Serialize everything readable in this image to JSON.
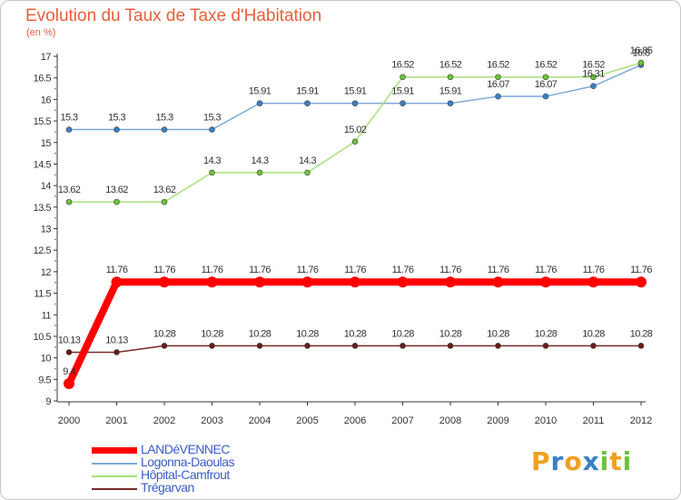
{
  "chart_data": {
    "type": "line",
    "title": "Evolution du Taux de Taxe d'Habitation",
    "unit_label": "(en %)",
    "x": [
      "2000",
      "2001",
      "2002",
      "2003",
      "2004",
      "2005",
      "2006",
      "2007",
      "2008",
      "2009",
      "2010",
      "2011",
      "2012"
    ],
    "ylim": [
      9,
      17
    ],
    "yticks": [
      "9",
      "9.5",
      "10",
      "10.5",
      "11",
      "11.5",
      "12",
      "12.5",
      "13",
      "13.5",
      "14",
      "14.5",
      "15",
      "15.5",
      "16",
      "16.5",
      "17"
    ],
    "grid": false,
    "legend_position": "bottom-left",
    "series": [
      {
        "name": "LANDéVENNEC",
        "color": "#ff0000",
        "point_color": "#ff0000",
        "values": [
          9.4,
          11.76,
          11.76,
          11.76,
          11.76,
          11.76,
          11.76,
          11.76,
          11.76,
          11.76,
          11.76,
          11.76,
          11.76
        ],
        "labels": [
          "9.4",
          "11.76",
          "11.76",
          "11.76",
          "11.76",
          "11.76",
          "11.76",
          "11.76",
          "11.76",
          "11.76",
          "11.76",
          "11.76",
          "11.76"
        ]
      },
      {
        "name": "Logonna-Daoulas",
        "color": "#7fa8d8",
        "point_color": "#3a7fc4",
        "values": [
          15.3,
          15.3,
          15.3,
          15.3,
          15.91,
          15.91,
          15.91,
          15.91,
          15.91,
          16.07,
          16.07,
          16.31,
          16.8
        ],
        "labels": [
          "15.3",
          "15.3",
          "15.3",
          "15.3",
          "15.91",
          "15.91",
          "15.91",
          "15.91",
          "15.91",
          "16.07",
          "16.07",
          "16.31",
          "16.8"
        ]
      },
      {
        "name": "Hôpital-Camfrout",
        "color": "#a8e07a",
        "point_color": "#6cc23a",
        "values": [
          13.62,
          13.62,
          13.62,
          14.3,
          14.3,
          14.3,
          15.02,
          16.52,
          16.52,
          16.52,
          16.52,
          16.52,
          16.85
        ],
        "labels": [
          "13.62",
          "13.62",
          "13.62",
          "14.3",
          "14.3",
          "14.3",
          "15.02",
          "16.52",
          "16.52",
          "16.52",
          "16.52",
          "16.52",
          "16.85"
        ]
      },
      {
        "name": "Trégarvan",
        "color": "#7a2a2a",
        "point_color": "#6a1a1a",
        "values": [
          10.13,
          10.13,
          10.28,
          10.28,
          10.28,
          10.28,
          10.28,
          10.28,
          10.28,
          10.28,
          10.28,
          10.28,
          10.28
        ],
        "labels": [
          "10.13",
          "10.13",
          "10.28",
          "10.28",
          "10.28",
          "10.28",
          "10.28",
          "10.28",
          "10.28",
          "10.28",
          "10.28",
          "10.28",
          "10.28"
        ]
      }
    ]
  },
  "brand": {
    "letters": [
      "P",
      "r",
      "o",
      "x",
      "i",
      "t",
      "i"
    ],
    "colors": [
      "#f0a020",
      "#3a7fc4",
      "#f0a020",
      "#3a7fc4",
      "#6cc23a",
      "#f0a020",
      "#6cc23a"
    ]
  }
}
